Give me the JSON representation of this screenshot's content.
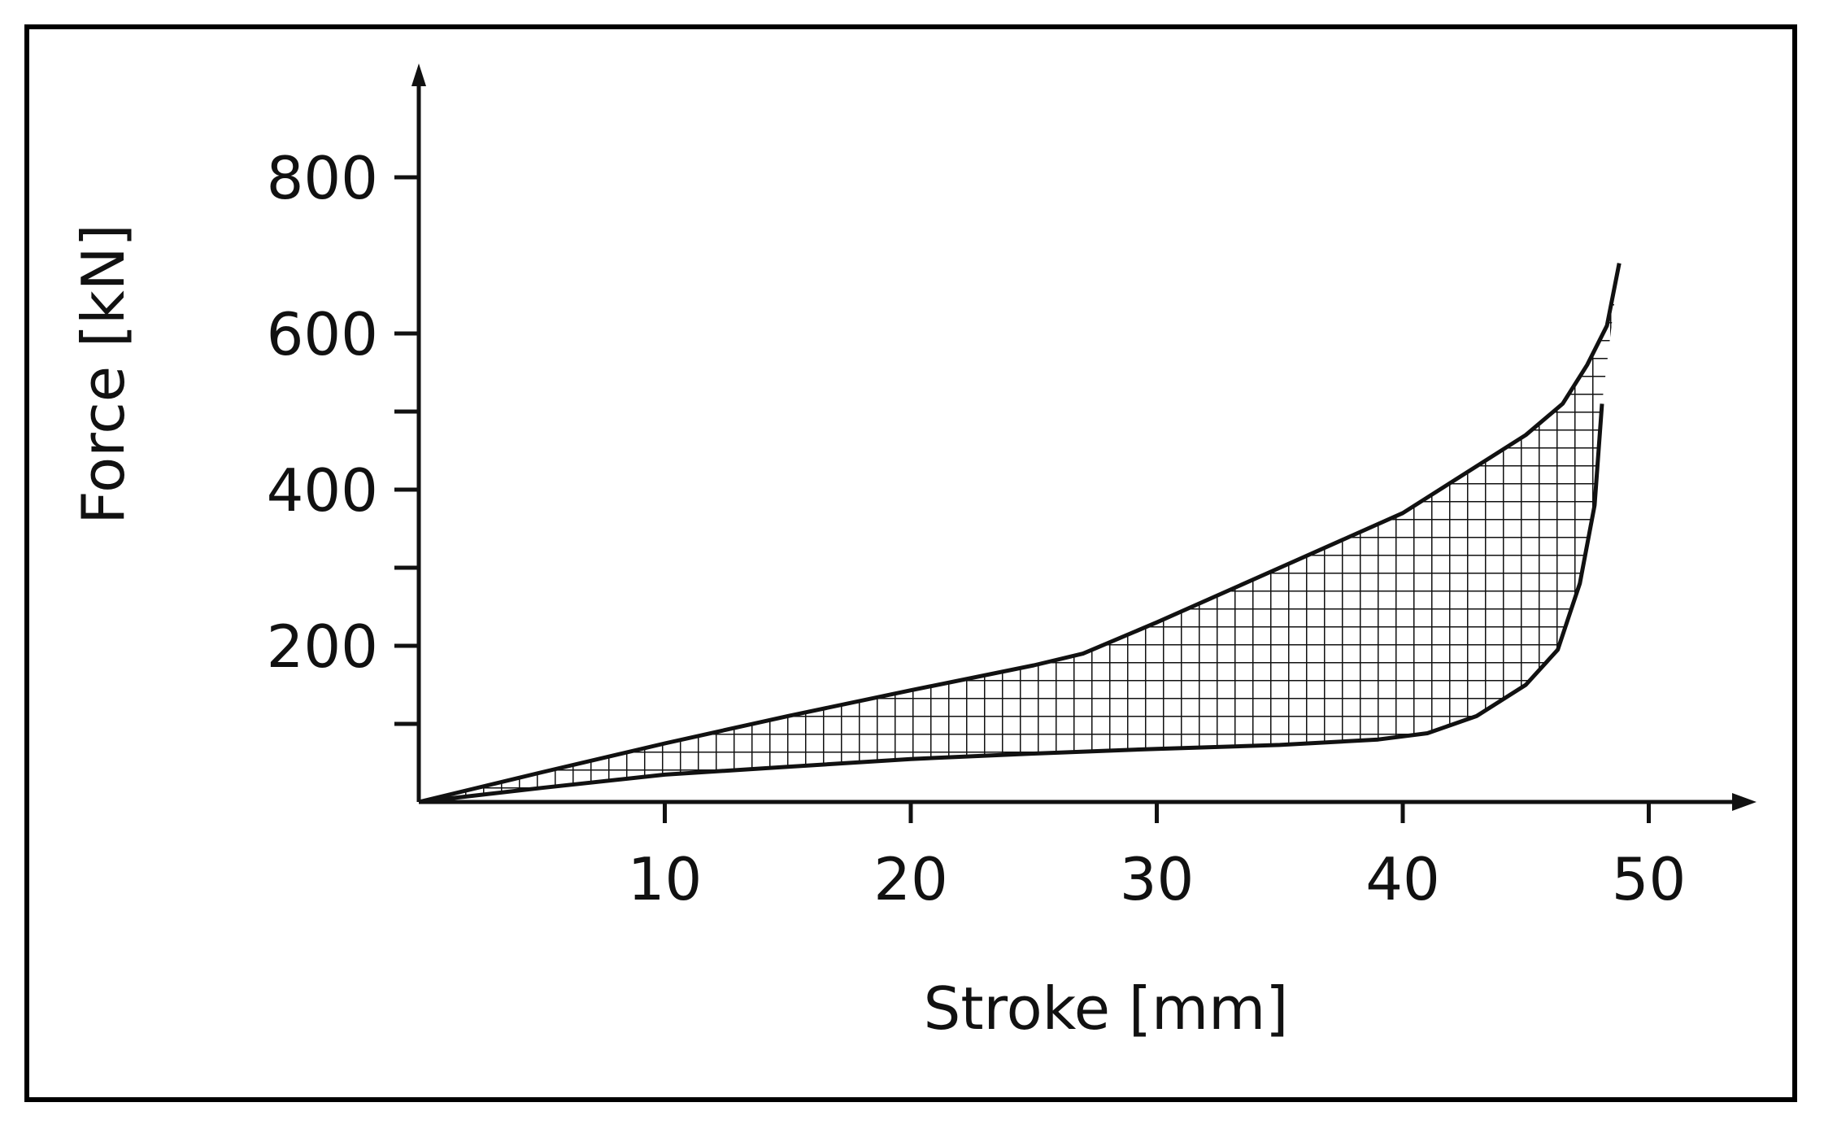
{
  "chart_data": {
    "type": "area",
    "title": "",
    "xlabel": "Stroke [mm]",
    "ylabel": "Force [kN]",
    "xlim": [
      0,
      54
    ],
    "ylim": [
      0,
      900
    ],
    "x_ticks": [
      10,
      20,
      30,
      40,
      50
    ],
    "x_tick_labels": [
      "10",
      "20",
      "30",
      "40",
      "50"
    ],
    "y_major_ticks": [
      200,
      400,
      600,
      800
    ],
    "y_tick_labels": [
      "200",
      "400",
      "600",
      "800"
    ],
    "y_minor_ticks": [
      100,
      300,
      500
    ],
    "grid": false,
    "fill_pattern": "crosshatch",
    "series": [
      {
        "name": "",
        "role": "loading",
        "x": [
          0,
          5,
          10,
          15,
          20,
          25,
          27,
          30,
          35,
          40,
          45,
          46.5,
          47.5,
          48.3,
          48.8
        ],
        "y": [
          0,
          38,
          75,
          110,
          143,
          175,
          190,
          230,
          300,
          370,
          470,
          510,
          560,
          610,
          690
        ]
      },
      {
        "name": "",
        "role": "unloading",
        "x": [
          0,
          5,
          10,
          15,
          20,
          25,
          30,
          35,
          39,
          41,
          43,
          45,
          46.3,
          47.2,
          47.8,
          48.1
        ],
        "y": [
          0,
          18,
          35,
          45,
          55,
          62,
          68,
          73,
          80,
          88,
          110,
          150,
          195,
          280,
          380,
          510
        ]
      }
    ]
  }
}
